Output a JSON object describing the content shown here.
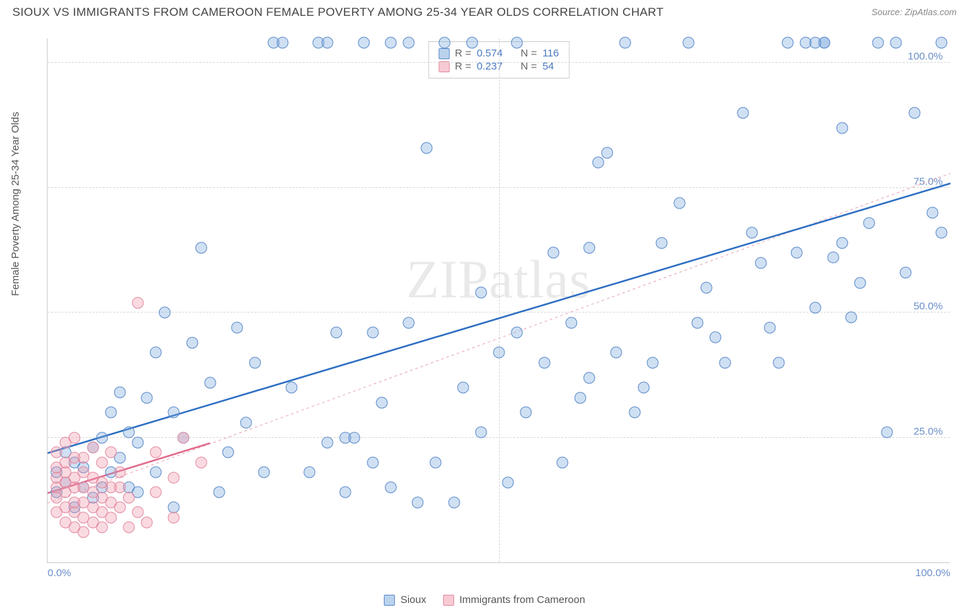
{
  "header": {
    "title": "SIOUX VS IMMIGRANTS FROM CAMEROON FEMALE POVERTY AMONG 25-34 YEAR OLDS CORRELATION CHART",
    "source": "Source: ZipAtlas.com"
  },
  "watermark_text": "ZIPatlas",
  "chart": {
    "type": "scatter",
    "ylabel": "Female Poverty Among 25-34 Year Olds",
    "xlim": [
      0,
      100
    ],
    "ylim": [
      0,
      105
    ],
    "background_color": "#ffffff",
    "grid_color": "#d8d8d8",
    "axis_color": "#cccccc",
    "label_fontsize": 15,
    "tick_color": "#6b8fc9",
    "yticks": [
      {
        "v": 25,
        "label": "25.0%"
      },
      {
        "v": 50,
        "label": "50.0%"
      },
      {
        "v": 75,
        "label": "75.0%"
      },
      {
        "v": 100,
        "label": "100.0%"
      }
    ],
    "xticks": [
      {
        "v": 0,
        "label": "0.0%"
      },
      {
        "v": 50,
        "label": ""
      },
      {
        "v": 100,
        "label": "100.0%"
      }
    ],
    "series": [
      {
        "name": "Sioux",
        "marker_color_fill": "rgba(120,165,220,0.35)",
        "marker_color_stroke": "#5a8ac9",
        "marker_class": "marker-blue",
        "regression": {
          "x0": 0,
          "y0": 22,
          "x1": 100,
          "y1": 76,
          "stroke": "#2e6fc2",
          "width": 2.5,
          "dash": "none"
        },
        "regression_dash": {
          "x0": 0,
          "y0": 12,
          "x1": 100,
          "y1": 78,
          "stroke": "#e9a5b4",
          "width": 1,
          "dash": "4,4"
        },
        "points": [
          [
            1,
            14
          ],
          [
            1,
            18
          ],
          [
            2,
            16
          ],
          [
            3,
            20
          ],
          [
            3,
            11
          ],
          [
            4,
            15
          ],
          [
            2,
            22
          ],
          [
            4,
            19
          ],
          [
            5,
            13
          ],
          [
            5,
            23
          ],
          [
            6,
            15
          ],
          [
            6,
            25
          ],
          [
            7,
            18
          ],
          [
            7,
            30
          ],
          [
            8,
            21
          ],
          [
            8,
            34
          ],
          [
            9,
            15
          ],
          [
            9,
            26
          ],
          [
            10,
            24
          ],
          [
            10,
            14
          ],
          [
            11,
            33
          ],
          [
            12,
            18
          ],
          [
            12,
            42
          ],
          [
            13,
            50
          ],
          [
            14,
            11
          ],
          [
            14,
            30
          ],
          [
            15,
            25
          ],
          [
            16,
            44
          ],
          [
            17,
            63
          ],
          [
            18,
            36
          ],
          [
            19,
            14
          ],
          [
            20,
            22
          ],
          [
            21,
            47
          ],
          [
            22,
            28
          ],
          [
            25,
            104
          ],
          [
            26,
            104
          ],
          [
            30,
            104
          ],
          [
            31,
            104
          ],
          [
            32,
            46
          ],
          [
            33,
            25
          ],
          [
            35,
            104
          ],
          [
            36,
            20
          ],
          [
            37,
            32
          ],
          [
            38,
            15
          ],
          [
            40,
            48
          ],
          [
            41,
            12
          ],
          [
            42,
            83
          ],
          [
            43,
            20
          ],
          [
            45,
            12
          ],
          [
            46,
            35
          ],
          [
            48,
            54
          ],
          [
            50,
            42
          ],
          [
            51,
            16
          ],
          [
            52,
            46
          ],
          [
            53,
            30
          ],
          [
            55,
            40
          ],
          [
            56,
            62
          ],
          [
            57,
            20
          ],
          [
            58,
            48
          ],
          [
            60,
            37
          ],
          [
            62,
            82
          ],
          [
            63,
            42
          ],
          [
            64,
            104
          ],
          [
            65,
            30
          ],
          [
            67,
            40
          ],
          [
            68,
            64
          ],
          [
            70,
            72
          ],
          [
            71,
            104
          ],
          [
            72,
            48
          ],
          [
            73,
            55
          ],
          [
            75,
            40
          ],
          [
            77,
            90
          ],
          [
            78,
            66
          ],
          [
            79,
            60
          ],
          [
            80,
            47
          ],
          [
            82,
            104
          ],
          [
            83,
            62
          ],
          [
            84,
            104
          ],
          [
            85,
            51
          ],
          [
            86,
            104
          ],
          [
            87,
            61
          ],
          [
            88,
            87
          ],
          [
            88,
            64
          ],
          [
            89,
            49
          ],
          [
            90,
            56
          ],
          [
            91,
            68
          ],
          [
            92,
            104
          ],
          [
            93,
            26
          ],
          [
            95,
            58
          ],
          [
            96,
            90
          ],
          [
            98,
            70
          ],
          [
            99,
            66
          ],
          [
            99,
            104
          ],
          [
            94,
            104
          ],
          [
            86,
            104
          ],
          [
            85,
            104
          ],
          [
            38,
            104
          ],
          [
            40,
            104
          ],
          [
            44,
            104
          ],
          [
            47,
            104
          ],
          [
            52,
            104
          ],
          [
            60,
            63
          ],
          [
            61,
            80
          ],
          [
            36,
            46
          ],
          [
            34,
            25
          ],
          [
            31,
            24
          ],
          [
            29,
            18
          ],
          [
            27,
            35
          ],
          [
            24,
            18
          ],
          [
            23,
            40
          ],
          [
            33,
            14
          ],
          [
            48,
            26
          ],
          [
            59,
            33
          ],
          [
            66,
            35
          ],
          [
            74,
            45
          ],
          [
            81,
            40
          ]
        ]
      },
      {
        "name": "Immigrants from Cameroon",
        "marker_color_fill": "rgba(240,150,170,0.35)",
        "marker_color_stroke": "#e38aa0",
        "marker_class": "marker-pink",
        "regression": {
          "x0": 0,
          "y0": 14,
          "x1": 18,
          "y1": 24,
          "stroke": "#e06a8a",
          "width": 2.5,
          "dash": "none"
        },
        "points": [
          [
            1,
            10
          ],
          [
            1,
            13
          ],
          [
            1,
            15
          ],
          [
            1,
            17
          ],
          [
            1,
            19
          ],
          [
            1,
            22
          ],
          [
            2,
            8
          ],
          [
            2,
            11
          ],
          [
            2,
            14
          ],
          [
            2,
            16
          ],
          [
            2,
            18
          ],
          [
            2,
            20
          ],
          [
            2,
            24
          ],
          [
            3,
            7
          ],
          [
            3,
            10
          ],
          [
            3,
            12
          ],
          [
            3,
            15
          ],
          [
            3,
            17
          ],
          [
            3,
            21
          ],
          [
            3,
            25
          ],
          [
            4,
            6
          ],
          [
            4,
            9
          ],
          [
            4,
            12
          ],
          [
            4,
            15
          ],
          [
            4,
            18
          ],
          [
            4,
            21
          ],
          [
            5,
            8
          ],
          [
            5,
            11
          ],
          [
            5,
            14
          ],
          [
            5,
            17
          ],
          [
            5,
            23
          ],
          [
            6,
            7
          ],
          [
            6,
            10
          ],
          [
            6,
            13
          ],
          [
            6,
            16
          ],
          [
            6,
            20
          ],
          [
            7,
            9
          ],
          [
            7,
            12
          ],
          [
            7,
            15
          ],
          [
            7,
            22
          ],
          [
            8,
            11
          ],
          [
            8,
            15
          ],
          [
            8,
            18
          ],
          [
            9,
            13
          ],
          [
            9,
            7
          ],
          [
            10,
            52
          ],
          [
            10,
            10
          ],
          [
            11,
            8
          ],
          [
            12,
            14
          ],
          [
            12,
            22
          ],
          [
            14,
            9
          ],
          [
            14,
            17
          ],
          [
            15,
            25
          ],
          [
            17,
            20
          ]
        ]
      }
    ],
    "stat_box": {
      "rows": [
        {
          "swatch": "swatch-blue",
          "r_label": "R =",
          "r": "0.574",
          "n_label": "N =",
          "n": "116"
        },
        {
          "swatch": "swatch-pink",
          "r_label": "R =",
          "r": "0.237",
          "n_label": "N =",
          "n": "54"
        }
      ]
    },
    "bottom_legend": [
      {
        "swatch": "swatch-blue",
        "label": "Sioux"
      },
      {
        "swatch": "swatch-pink",
        "label": "Immigrants from Cameroon"
      }
    ]
  }
}
